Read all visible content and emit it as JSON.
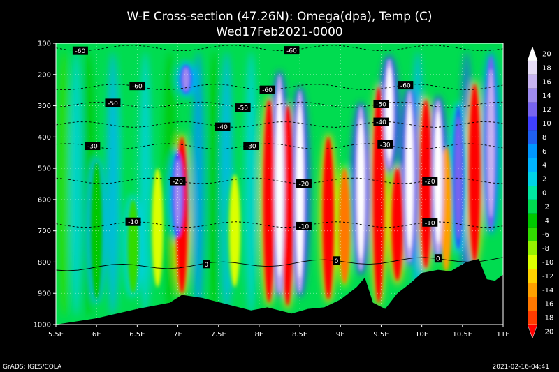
{
  "chart_data": {
    "type": "heatmap",
    "title": "W-E Cross-section (47.26N): Omega(dpa), Temp (C)",
    "subtitle": "Wed17Feb2021-0000",
    "x_ticks": [
      "5.5E",
      "6E",
      "6.5E",
      "7E",
      "7.5E",
      "8E",
      "8.5E",
      "9E",
      "9.5E",
      "10E",
      "10.5E",
      "11E"
    ],
    "x_values": [
      5.5,
      6,
      6.5,
      7,
      7.5,
      8,
      8.5,
      9,
      9.5,
      10,
      10.5,
      11
    ],
    "xlim": [
      5.5,
      11
    ],
    "y_ticks": [
      "100",
      "200",
      "300",
      "400",
      "500",
      "600",
      "700",
      "800",
      "900",
      "1000"
    ],
    "y_values": [
      100,
      200,
      300,
      400,
      500,
      600,
      700,
      800,
      900,
      1000
    ],
    "ylim": [
      100,
      1000
    ],
    "colorbar": {
      "labels": [
        "20",
        "18",
        "16",
        "14",
        "12",
        "10",
        "8",
        "6",
        "4",
        "2",
        "0",
        "-2",
        "-4",
        "-6",
        "-8",
        "-10",
        "-12",
        "-14",
        "-16",
        "-18",
        "-20"
      ],
      "colors": [
        "#ffffff",
        "#e6dcf5",
        "#c8b4f0",
        "#a08cf0",
        "#7864f0",
        "#4040ff",
        "#2060f0",
        "#0096ff",
        "#00b4ff",
        "#00d2e6",
        "#00e6a0",
        "#00dc50",
        "#00c800",
        "#32dc00",
        "#96f000",
        "#dcff00",
        "#ffd200",
        "#ffa000",
        "#ff7800",
        "#ff3c00",
        "#ff0000"
      ]
    },
    "temp_contours": [
      {
        "label": "-60",
        "p": 115,
        "labels_at": [
          5.8,
          8.4
        ]
      },
      {
        "label": "-60",
        "p": 240,
        "labels_at": [
          6.5,
          8.1,
          9.8
        ]
      },
      {
        "label": "-50",
        "p": 297,
        "labels_at": [
          6.2,
          7.8,
          9.5
        ]
      },
      {
        "label": "-40",
        "p": 360,
        "labels_at": [
          7.55,
          9.5
        ]
      },
      {
        "label": "-30",
        "p": 430,
        "labels_at": [
          5.95,
          7.9,
          9.55
        ]
      },
      {
        "label": "-20",
        "p": 540,
        "labels_at": [
          7.0,
          8.55,
          10.1
        ]
      },
      {
        "label": "-10",
        "p": 680,
        "labels_at": [
          6.45,
          8.55,
          10.1
        ]
      },
      {
        "label": "0",
        "p": 820,
        "labels_at": [
          7.35,
          8.95,
          10.2
        ]
      }
    ],
    "terrain": [
      [
        5.5,
        1000
      ],
      [
        6.0,
        980
      ],
      [
        6.5,
        950
      ],
      [
        6.9,
        930
      ],
      [
        7.05,
        905
      ],
      [
        7.3,
        915
      ],
      [
        7.6,
        935
      ],
      [
        7.9,
        955
      ],
      [
        8.1,
        945
      ],
      [
        8.4,
        965
      ],
      [
        8.6,
        950
      ],
      [
        8.8,
        945
      ],
      [
        9.0,
        920
      ],
      [
        9.2,
        880
      ],
      [
        9.3,
        850
      ],
      [
        9.4,
        930
      ],
      [
        9.55,
        950
      ],
      [
        9.7,
        900
      ],
      [
        9.85,
        870
      ],
      [
        10.0,
        835
      ],
      [
        10.2,
        825
      ],
      [
        10.35,
        830
      ],
      [
        10.55,
        800
      ],
      [
        10.7,
        790
      ],
      [
        10.8,
        855
      ],
      [
        10.9,
        860
      ],
      [
        11.0,
        840
      ]
    ],
    "ascent_columns": [
      {
        "x": 6.0,
        "p": [
          480,
          920
        ],
        "level": -4
      },
      {
        "x": 6.45,
        "p": [
          600,
          900
        ],
        "level": -6
      },
      {
        "x": 6.75,
        "p": [
          500,
          880
        ],
        "level": -10
      },
      {
        "x": 7.05,
        "p": [
          400,
          900
        ],
        "level": -20
      },
      {
        "x": 7.7,
        "p": [
          520,
          880
        ],
        "level": -10
      },
      {
        "x": 8.12,
        "p": [
          280,
          930
        ],
        "level": -20
      },
      {
        "x": 8.35,
        "p": [
          300,
          940
        ],
        "level": -20
      },
      {
        "x": 8.85,
        "p": [
          400,
          920
        ],
        "level": -20
      },
      {
        "x": 9.05,
        "p": [
          500,
          870
        ],
        "level": -16
      },
      {
        "x": 9.47,
        "p": [
          240,
          930
        ],
        "level": -20
      },
      {
        "x": 9.7,
        "p": [
          500,
          860
        ],
        "level": -20
      },
      {
        "x": 10.05,
        "p": [
          280,
          820
        ],
        "level": -20
      },
      {
        "x": 10.3,
        "p": [
          430,
          830
        ],
        "level": -14
      },
      {
        "x": 10.65,
        "p": [
          230,
          800
        ],
        "level": -20
      }
    ],
    "descent_columns": [
      {
        "x": 7.0,
        "p": [
          450,
          720
        ],
        "level": 14
      },
      {
        "x": 7.1,
        "p": [
          170,
          260
        ],
        "level": 14
      },
      {
        "x": 8.25,
        "p": [
          200,
          900
        ],
        "level": 20
      },
      {
        "x": 8.5,
        "p": [
          250,
          900
        ],
        "level": 20
      },
      {
        "x": 9.25,
        "p": [
          300,
          830
        ],
        "level": 20
      },
      {
        "x": 9.6,
        "p": [
          150,
          500
        ],
        "level": 20
      },
      {
        "x": 9.85,
        "p": [
          250,
          800
        ],
        "level": 20
      },
      {
        "x": 10.2,
        "p": [
          280,
          780
        ],
        "level": 20
      },
      {
        "x": 10.45,
        "p": [
          300,
          760
        ],
        "level": 12
      },
      {
        "x": 10.85,
        "p": [
          140,
          700
        ],
        "level": 16
      }
    ]
  },
  "footer": {
    "left": "GrADS: IGES/COLA",
    "right": "2021-02-16-04:41"
  }
}
